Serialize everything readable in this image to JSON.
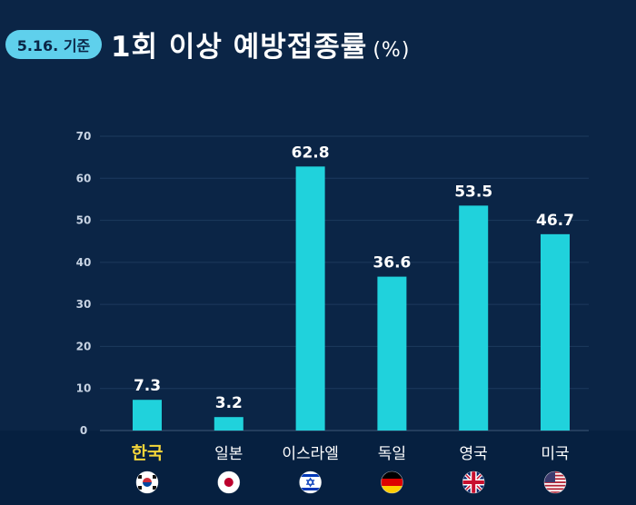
{
  "header": {
    "date_badge": "5.16. 기준",
    "title": "1회 이상 예방접종률",
    "unit": "(%)"
  },
  "colors": {
    "background": "#0b2546",
    "bar": "#20d2dc",
    "highlight_label": "#f5d63a",
    "badge": "#5fd0ec"
  },
  "chart_data": {
    "type": "bar",
    "categories": [
      "한국",
      "일본",
      "이스라엘",
      "독일",
      "영국",
      "미국"
    ],
    "values": [
      7.3,
      3.2,
      62.8,
      36.6,
      53.5,
      46.7
    ],
    "data_labels": [
      "7.3",
      "3.2",
      "62.8",
      "36.6",
      "53.5",
      "46.7"
    ],
    "highlight_category": "한국",
    "flags": [
      "korea-flag-icon",
      "japan-flag-icon",
      "israel-flag-icon",
      "germany-flag-icon",
      "uk-flag-icon",
      "usa-flag-icon"
    ],
    "ylim": [
      0,
      70
    ],
    "yticks": [
      0,
      10,
      20,
      30,
      40,
      50,
      60,
      70
    ],
    "grid": true,
    "legend": "none"
  }
}
